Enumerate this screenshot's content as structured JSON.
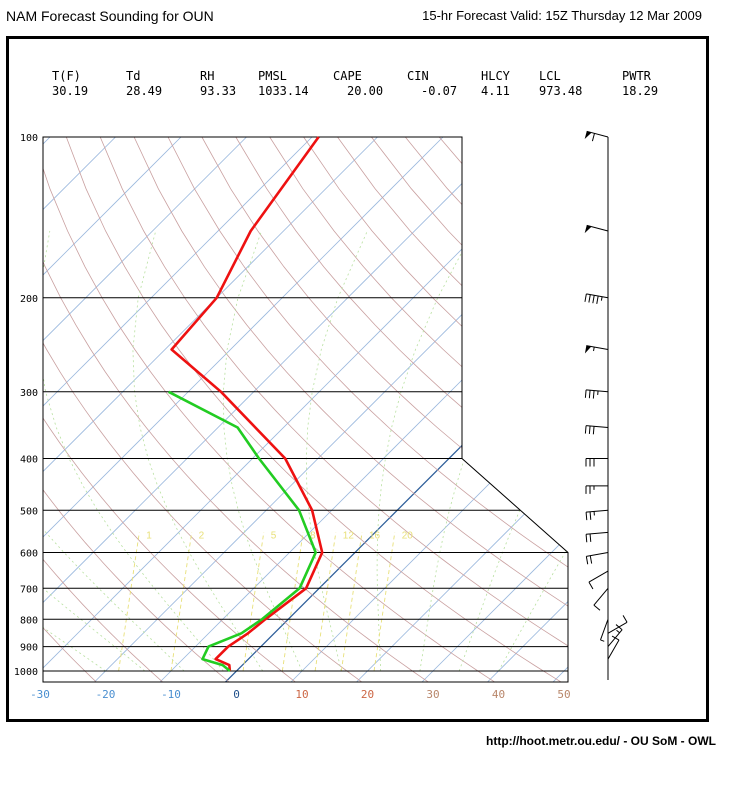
{
  "header": {
    "title": "NAM Forecast Sounding for OUN",
    "valid": "15-hr Forecast Valid: 15Z Thursday 12 Mar 2009"
  },
  "footer": {
    "credit": "http://hoot.metr.ou.edu/ - OU SoM - OWL"
  },
  "indices": [
    {
      "label": "T(F)",
      "value": "30.19"
    },
    {
      "label": "Td",
      "value": "28.49"
    },
    {
      "label": "RH",
      "value": "93.33"
    },
    {
      "label": "PMSL",
      "value": "1033.14"
    },
    {
      "label": "CAPE",
      "value": "20.00"
    },
    {
      "label": "CIN",
      "value": "-0.07"
    },
    {
      "label": "HLCY",
      "value": "4.11"
    },
    {
      "label": "LCL",
      "value": "973.48"
    },
    {
      "label": "PWTR",
      "value": "18.29"
    }
  ],
  "chart_data": {
    "type": "line",
    "xlabel": "",
    "ylabel": "",
    "pressure_levels": [
      100,
      200,
      300,
      400,
      500,
      600,
      700,
      800,
      900,
      1000
    ],
    "pressure_labels": [
      "100",
      "200",
      "300",
      "400",
      "500",
      "600",
      "700",
      "800",
      "900",
      "1000"
    ],
    "temp_ticks": [
      -30,
      -20,
      -10,
      0,
      10,
      20,
      30,
      40,
      50
    ],
    "temp_tick_labels": [
      "-30",
      "-20",
      "-10",
      "0",
      "10",
      "20",
      "30",
      "40",
      "50"
    ],
    "mixing_ratio_labels": [
      "1",
      "2",
      "5",
      "8",
      "12",
      "16",
      "20"
    ],
    "series": [
      {
        "color": "#ee1111",
        "points": [
          {
            "p": 100,
            "t": -69
          },
          {
            "p": 150,
            "t": -65
          },
          {
            "p": 200,
            "t": -60
          },
          {
            "p": 250,
            "t": -59
          },
          {
            "p": 300,
            "t": -45
          },
          {
            "p": 400,
            "t": -25
          },
          {
            "p": 500,
            "t": -13
          },
          {
            "p": 600,
            "t": -5
          },
          {
            "p": 700,
            "t": -2
          },
          {
            "p": 800,
            "t": -3.5
          },
          {
            "p": 850,
            "t": -4
          },
          {
            "p": 900,
            "t": -5
          },
          {
            "p": 950,
            "t": -5
          },
          {
            "p": 975,
            "t": -2
          },
          {
            "p": 1000,
            "t": -1
          }
        ]
      },
      {
        "color": "#22cc22",
        "points": [
          {
            "p": 300,
            "t": -53
          },
          {
            "p": 350,
            "t": -37
          },
          {
            "p": 400,
            "t": -29
          },
          {
            "p": 500,
            "t": -15
          },
          {
            "p": 600,
            "t": -6
          },
          {
            "p": 700,
            "t": -3
          },
          {
            "p": 800,
            "t": -4
          },
          {
            "p": 850,
            "t": -5
          },
          {
            "p": 900,
            "t": -8
          },
          {
            "p": 950,
            "t": -7
          },
          {
            "p": 975,
            "t": -3
          },
          {
            "p": 1000,
            "t": -1
          }
        ]
      }
    ],
    "wind_barbs": [
      {
        "p": 100,
        "speed_kt": 60,
        "dir_deg": 285
      },
      {
        "p": 150,
        "speed_kt": 50,
        "dir_deg": 285
      },
      {
        "p": 200,
        "speed_kt": 45,
        "dir_deg": 280
      },
      {
        "p": 250,
        "speed_kt": 55,
        "dir_deg": 280
      },
      {
        "p": 300,
        "speed_kt": 35,
        "dir_deg": 275
      },
      {
        "p": 350,
        "speed_kt": 30,
        "dir_deg": 275
      },
      {
        "p": 400,
        "speed_kt": 30,
        "dir_deg": 270
      },
      {
        "p": 450,
        "speed_kt": 25,
        "dir_deg": 270
      },
      {
        "p": 500,
        "speed_kt": 25,
        "dir_deg": 265
      },
      {
        "p": 550,
        "speed_kt": 20,
        "dir_deg": 265
      },
      {
        "p": 600,
        "speed_kt": 20,
        "dir_deg": 260
      },
      {
        "p": 650,
        "speed_kt": 10,
        "dir_deg": 240
      },
      {
        "p": 700,
        "speed_kt": 10,
        "dir_deg": 220
      },
      {
        "p": 800,
        "speed_kt": 5,
        "dir_deg": 200
      },
      {
        "p": 850,
        "speed_kt": 10,
        "dir_deg": 60
      },
      {
        "p": 900,
        "speed_kt": 15,
        "dir_deg": 40
      },
      {
        "p": 950,
        "speed_kt": 10,
        "dir_deg": 30
      }
    ],
    "colors": {
      "temperature": "#ee1111",
      "dewpoint": "#22cc22",
      "isotherm": "#9ab8dd",
      "dry_adiabat": "#c9a0a0",
      "mixing_ratio": "#e8e07a",
      "zero_isotherm": "#2f5f9a"
    }
  }
}
